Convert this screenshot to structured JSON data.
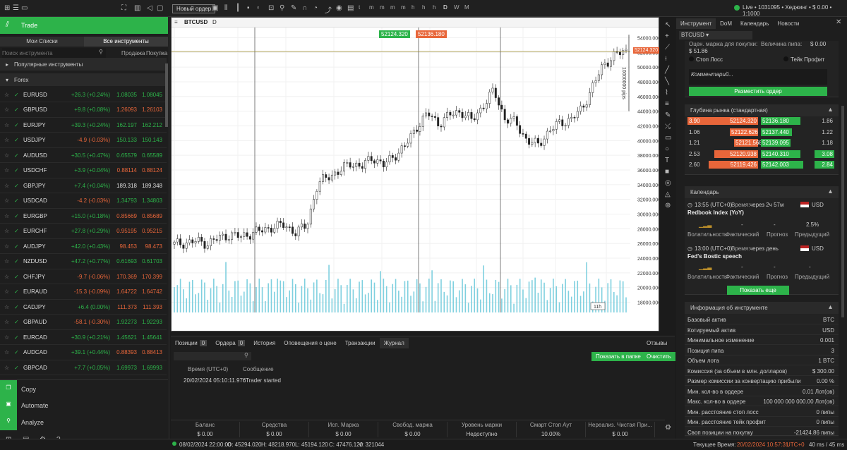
{
  "topbar": {
    "new_order": "Новый ордер",
    "timeframes": [
      "t",
      "m",
      "m",
      "m",
      "m",
      "h",
      "h",
      "h",
      "D",
      "W",
      "M"
    ],
    "live": "Live",
    "account": "1031095",
    "hedge": "Хеджинг",
    "balance": "$ 0.00",
    "leverage": "1:1000"
  },
  "left": {
    "trade": "Trade",
    "tab_watch": "Мои Списки",
    "tab_all": "Все инструменты",
    "search_placeholder": "Поиск инструмента",
    "col_sell": "Продажа",
    "col_buy": "Покупка",
    "popular": "Популярные инструменты",
    "forex": "Forex",
    "rows": [
      {
        "sym": "EURUSD",
        "chg": "+26.3 (+0.24%)",
        "bid": "1.08035",
        "ask": "1.08045",
        "c": "pos"
      },
      {
        "sym": "GBPUSD",
        "chg": "+9.8 (+0.08%)",
        "bid": "1.26093",
        "ask": "1.26103",
        "c": "neg"
      },
      {
        "sym": "EURJPY",
        "chg": "+39.3 (+0.24%)",
        "bid": "162.197",
        "ask": "162.212",
        "c": "pos"
      },
      {
        "sym": "USDJPY",
        "chg": "-4.9 (-0.03%)",
        "bid": "150.133",
        "ask": "150.143",
        "c": "pos"
      },
      {
        "sym": "AUDUSD",
        "chg": "+30.5 (+0.47%)",
        "bid": "0.65579",
        "ask": "0.65589",
        "c": "pos"
      },
      {
        "sym": "USDCHF",
        "chg": "+3.9 (+0.04%)",
        "bid": "0.88114",
        "ask": "0.88124",
        "c": "neg"
      },
      {
        "sym": "GBPJPY",
        "chg": "+7.4 (+0.04%)",
        "bid": "189.318",
        "ask": "189.348",
        "c": "neu"
      },
      {
        "sym": "USDCAD",
        "chg": "-4.2 (-0.03%)",
        "bid": "1.34793",
        "ask": "1.34803",
        "c": "pos"
      },
      {
        "sym": "EURGBP",
        "chg": "+15.0 (+0.18%)",
        "bid": "0.85669",
        "ask": "0.85689",
        "c": "neg"
      },
      {
        "sym": "EURCHF",
        "chg": "+27.8 (+0.29%)",
        "bid": "0.95195",
        "ask": "0.95215",
        "c": "neg"
      },
      {
        "sym": "AUDJPY",
        "chg": "+42.0 (+0.43%)",
        "bid": "98.453",
        "ask": "98.473",
        "c": "neg"
      },
      {
        "sym": "NZDUSD",
        "chg": "+47.2 (+0.77%)",
        "bid": "0.61693",
        "ask": "0.61703",
        "c": "pos"
      },
      {
        "sym": "CHFJPY",
        "chg": "-9.7 (-0.06%)",
        "bid": "170.369",
        "ask": "170.399",
        "c": "neg"
      },
      {
        "sym": "EURAUD",
        "chg": "-15.3 (-0.09%)",
        "bid": "1.64722",
        "ask": "1.64742",
        "c": "neg"
      },
      {
        "sym": "CADJPY",
        "chg": "+6.4 (0.00%)",
        "bid": "111.373",
        "ask": "111.393",
        "c": "neg"
      },
      {
        "sym": "GBPAUD",
        "chg": "-58.1 (-0.30%)",
        "bid": "1.92273",
        "ask": "1.92293",
        "c": "pos"
      },
      {
        "sym": "EURCAD",
        "chg": "+30.9 (+0.21%)",
        "bid": "1.45621",
        "ask": "1.45641",
        "c": "pos"
      },
      {
        "sym": "AUDCAD",
        "chg": "+39.1 (+0.44%)",
        "bid": "0.88393",
        "ask": "0.88413",
        "c": "neg"
      },
      {
        "sym": "GBPCAD",
        "chg": "+7.7 (+0.05%)",
        "bid": "1.69973",
        "ask": "1.69993",
        "c": "pos"
      }
    ],
    "copy": "Copy",
    "automate": "Automate",
    "analyze": "Analyze"
  },
  "chart": {
    "symbol": "BTCUSD",
    "tf": "D",
    "bid_tag": "52124.320",
    "ask_tag": "52136.180",
    "price_tag": "52124.320",
    "range_label": "10000000 pips",
    "yticks": [
      "54000.000",
      "52000.000",
      "50000.000",
      "48000.000",
      "46000.000",
      "44000.000",
      "42000.000",
      "40000.000",
      "38000.000",
      "36000.000",
      "34000.000",
      "32000.000",
      "30000.000",
      "28000.000",
      "26000.000",
      "24000.000",
      "22000.000",
      "20000.000",
      "18000.000"
    ],
    "xticks": [
      "30 Aug 2023, UTC+0",
      "23 Sep 21:00",
      "11 Oct 21:00",
      "29 Oct 21:00",
      "16 Nov 22:00",
      "04 Dec 22:00",
      "22 Dec 22:00",
      "09 Jan 2024",
      "21 Jan 22:00",
      "08 Feb 22:00"
    ],
    "cursor": "11h"
  },
  "bottom": {
    "tabs": [
      "Позиции",
      "Ордера",
      "История",
      "Оповещения о цене",
      "Транзакции",
      "Журнал"
    ],
    "counts": [
      "0",
      "0"
    ],
    "reviews": "Отзывы",
    "show_folder": "Показать в папке",
    "clear": "Очистить",
    "col_time": "Время (UTC+0)",
    "col_msg": "Сообщение",
    "log_time": "20/02/2024 05:10:11.976",
    "log_msg": "cTrader started",
    "metrics": [
      {
        "l": "Баланс",
        "v": "$ 0.00"
      },
      {
        "l": "Средства",
        "v": "$ 0.00"
      },
      {
        "l": "Исп. Маржа",
        "v": "$ 0.00"
      },
      {
        "l": "Свобод. маржа",
        "v": "$ 0.00"
      },
      {
        "l": "Уровень маржи",
        "v": "Недоступно"
      },
      {
        "l": "Смарт Стоп Аут",
        "v": "10.00%"
      },
      {
        "l": "Нереализ. Чистая При...",
        "v": "$ 0.00"
      }
    ]
  },
  "right": {
    "tabs": [
      "Инструмент",
      "DoM",
      "Календарь",
      "Новости"
    ],
    "symbol": "BTCUSD",
    "margin_lbl": "Оцен. маржа для покупки:",
    "margin_val": "$ 51.86",
    "pip_lbl": "Величина пипа:",
    "pip_val": "$ 0.00",
    "stop": "Стоп Лосс",
    "take": "Тейк Профит",
    "comment": "Комментарий...",
    "place": "Разместить ордер",
    "dom_title": "Глубина рынка (стандартная)",
    "dom": [
      [
        "3.90",
        "52124.320",
        "52136.180",
        "1.86"
      ],
      [
        "1.06",
        "52122.626",
        "52137.440",
        "1.22"
      ],
      [
        "1.21",
        "52121.568",
        "52139.095",
        "1.18"
      ],
      [
        "2.53",
        "52120.938",
        "52140.310",
        "3.08"
      ],
      [
        "2.60",
        "52119.426",
        "52142.003",
        "2.84"
      ]
    ],
    "cal_title": "Календарь",
    "ev1_time": "13:55 (UTC+0)",
    "ev1_when_lbl": "Время:",
    "ev1_when": "через 2ч 57м",
    "ev1_name": "Redbook Index (YoY)",
    "cur": "USD",
    "vol": "Волатильность",
    "fact": "Фактический",
    "fc": "Прогноз",
    "prev": "Предыдущий",
    "ev1_prev": "2.5%",
    "dash": "-",
    "ev2_time": "13:00 (UTC+0)",
    "ev2_when": "через день",
    "ev2_name": "Fed's Bostic speech",
    "show_more": "Показать еще",
    "info_title": "Информация об инструменте",
    "info": [
      [
        "Базовый актив",
        "BTC"
      ],
      [
        "Котируемый актив",
        "USD"
      ],
      [
        "Минимальное изменение",
        "0.001"
      ],
      [
        "Позиция пипа",
        "3"
      ],
      [
        "Объем лота",
        "1 BTC"
      ],
      [
        "Комиссия (за объем в млн. долларов)",
        "$ 300.00"
      ],
      [
        "Размер комиссии за конвертацию прибыли",
        "0.00 %"
      ],
      [
        "Мин. кол-во в ордере",
        "0.01 Лот(ов)"
      ],
      [
        "Макс. кол-во в ордере",
        "100 000 000 000.00 Лот(ов)"
      ],
      [
        "Мин. расстояние стоп лосс",
        "0 пипы"
      ],
      [
        "Мин. расстояние тейк профит",
        "0 пипы"
      ],
      [
        "Своп позиции на покупку",
        "-21424.86 пипы"
      ]
    ]
  },
  "status": {
    "date": "08/02/2024 22:00:00",
    "o": "O: 45294.020",
    "h": "H: 48218.970",
    "l": "L: 45194.120",
    "c": "C: 47476.120",
    "v": "V: 321044",
    "time_lbl": "Текущее Время:",
    "time": "20/02/2024 10:57:31",
    "tz": "UTC+0",
    "ping": "40 ms / 45 ms"
  },
  "chart_data": {
    "type": "candlestick",
    "xlim": [
      "30 Aug 2023",
      "18 Feb 2024"
    ],
    "ylim": [
      17000,
      55000
    ],
    "close": [
      25900,
      26100,
      26300,
      26000,
      26700,
      27200,
      26900,
      27400,
      27800,
      28300,
      28500,
      27500,
      28400,
      34000,
      35200,
      35800,
      37000,
      36400,
      37800,
      36600,
      38000,
      39300,
      41900,
      43700,
      42300,
      43500,
      44000,
      42700,
      44700,
      46800,
      43000,
      42400,
      40000,
      39400,
      41300,
      42400,
      42900,
      44300,
      47500,
      50400,
      51700,
      52124
    ]
  }
}
